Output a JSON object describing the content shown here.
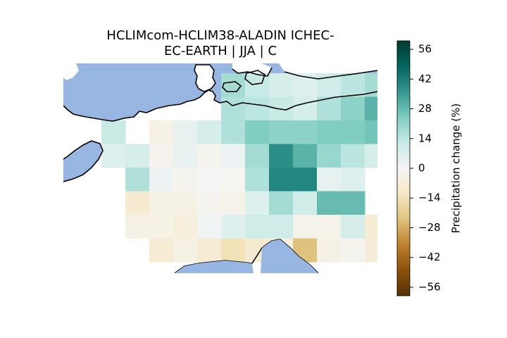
{
  "title": {
    "line1": "HCLIMcom-HCLIM38-ALADIN ICHEC-",
    "line2": "EC-EARTH | JJA | C"
  },
  "colorbar": {
    "label": "Precipitation change (%)",
    "min": -60,
    "max": 60,
    "ticks": [
      -56,
      -42,
      -28,
      -14,
      0,
      14,
      28,
      42,
      56
    ],
    "tick_labels": [
      "−56",
      "−42",
      "−28",
      "−14",
      "0",
      "14",
      "28",
      "42",
      "56"
    ],
    "colormap": "BrBG",
    "colors": [
      "#543005",
      "#8c510a",
      "#bf812d",
      "#dfc27d",
      "#f6e8c3",
      "#f5f5f5",
      "#c7eae5",
      "#80cdc1",
      "#35978f",
      "#01665e",
      "#003c30"
    ]
  },
  "map": {
    "sea_color": "#97b6e1",
    "land_color": "#ffffff",
    "coast_color": "#000000"
  },
  "chart_data": {
    "type": "heatmap",
    "variable": "Precipitation change (%)",
    "season": "JJA",
    "grid_cols": 13,
    "grid_rows": 9,
    "values": [
      [
        null,
        null,
        null,
        null,
        null,
        null,
        18,
        12,
        8,
        6,
        10,
        14,
        18
      ],
      [
        null,
        null,
        null,
        null,
        null,
        null,
        16,
        14,
        12,
        8,
        16,
        22,
        30
      ],
      [
        null,
        12,
        null,
        -4,
        4,
        8,
        16,
        24,
        22,
        22,
        24,
        24,
        26
      ],
      [
        null,
        6,
        8,
        -2,
        3,
        -2,
        2,
        18,
        38,
        30,
        20,
        14,
        8
      ],
      [
        null,
        null,
        16,
        2,
        -2,
        0,
        -1,
        16,
        40,
        40,
        4,
        6,
        null
      ],
      [
        null,
        null,
        -9,
        -4,
        -4,
        -2,
        -3,
        6,
        18,
        10,
        28,
        28,
        null
      ],
      [
        null,
        null,
        -4,
        -4,
        -6,
        1,
        6,
        10,
        10,
        -3,
        -3,
        8,
        -8
      ],
      [
        null,
        null,
        null,
        -8,
        -4,
        -8,
        -14,
        -9,
        -5,
        -24,
        -4,
        -2,
        -7
      ],
      [
        null,
        null,
        null,
        null,
        null,
        null,
        null,
        null,
        null,
        null,
        null,
        null,
        null
      ]
    ]
  }
}
